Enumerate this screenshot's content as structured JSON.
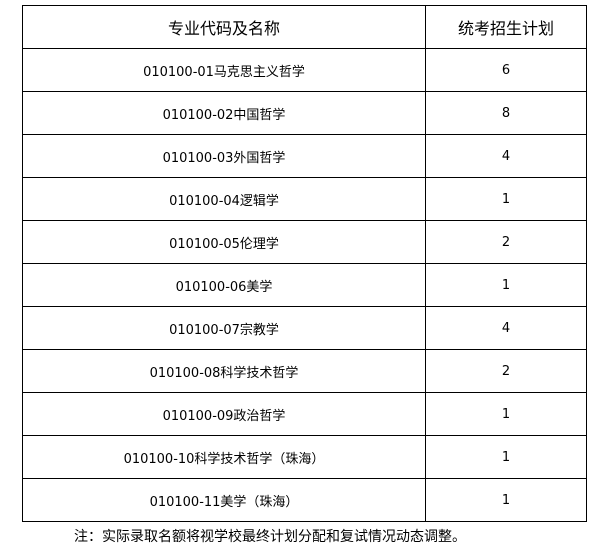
{
  "table": {
    "headers": {
      "major": "专业代码及名称",
      "plan": "统考招生计划"
    },
    "rows": [
      {
        "name": "010100-01马克思主义哲学",
        "plan": "6"
      },
      {
        "name": "010100-02中国哲学",
        "plan": "8"
      },
      {
        "name": "010100-03外国哲学",
        "plan": "4"
      },
      {
        "name": "010100-04逻辑学",
        "plan": "1"
      },
      {
        "name": "010100-05伦理学",
        "plan": "2"
      },
      {
        "name": "010100-06美学",
        "plan": "1"
      },
      {
        "name": "010100-07宗教学",
        "plan": "4"
      },
      {
        "name": "010100-08科学技术哲学",
        "plan": "2"
      },
      {
        "name": "010100-09政治哲学",
        "plan": "1"
      },
      {
        "name": "010100-10科学技术哲学（珠海）",
        "plan": "1"
      },
      {
        "name": "010100-11美学（珠海）",
        "plan": "1"
      }
    ]
  },
  "note": "注：实际录取名额将视学校最终计划分配和复试情况动态调整。"
}
